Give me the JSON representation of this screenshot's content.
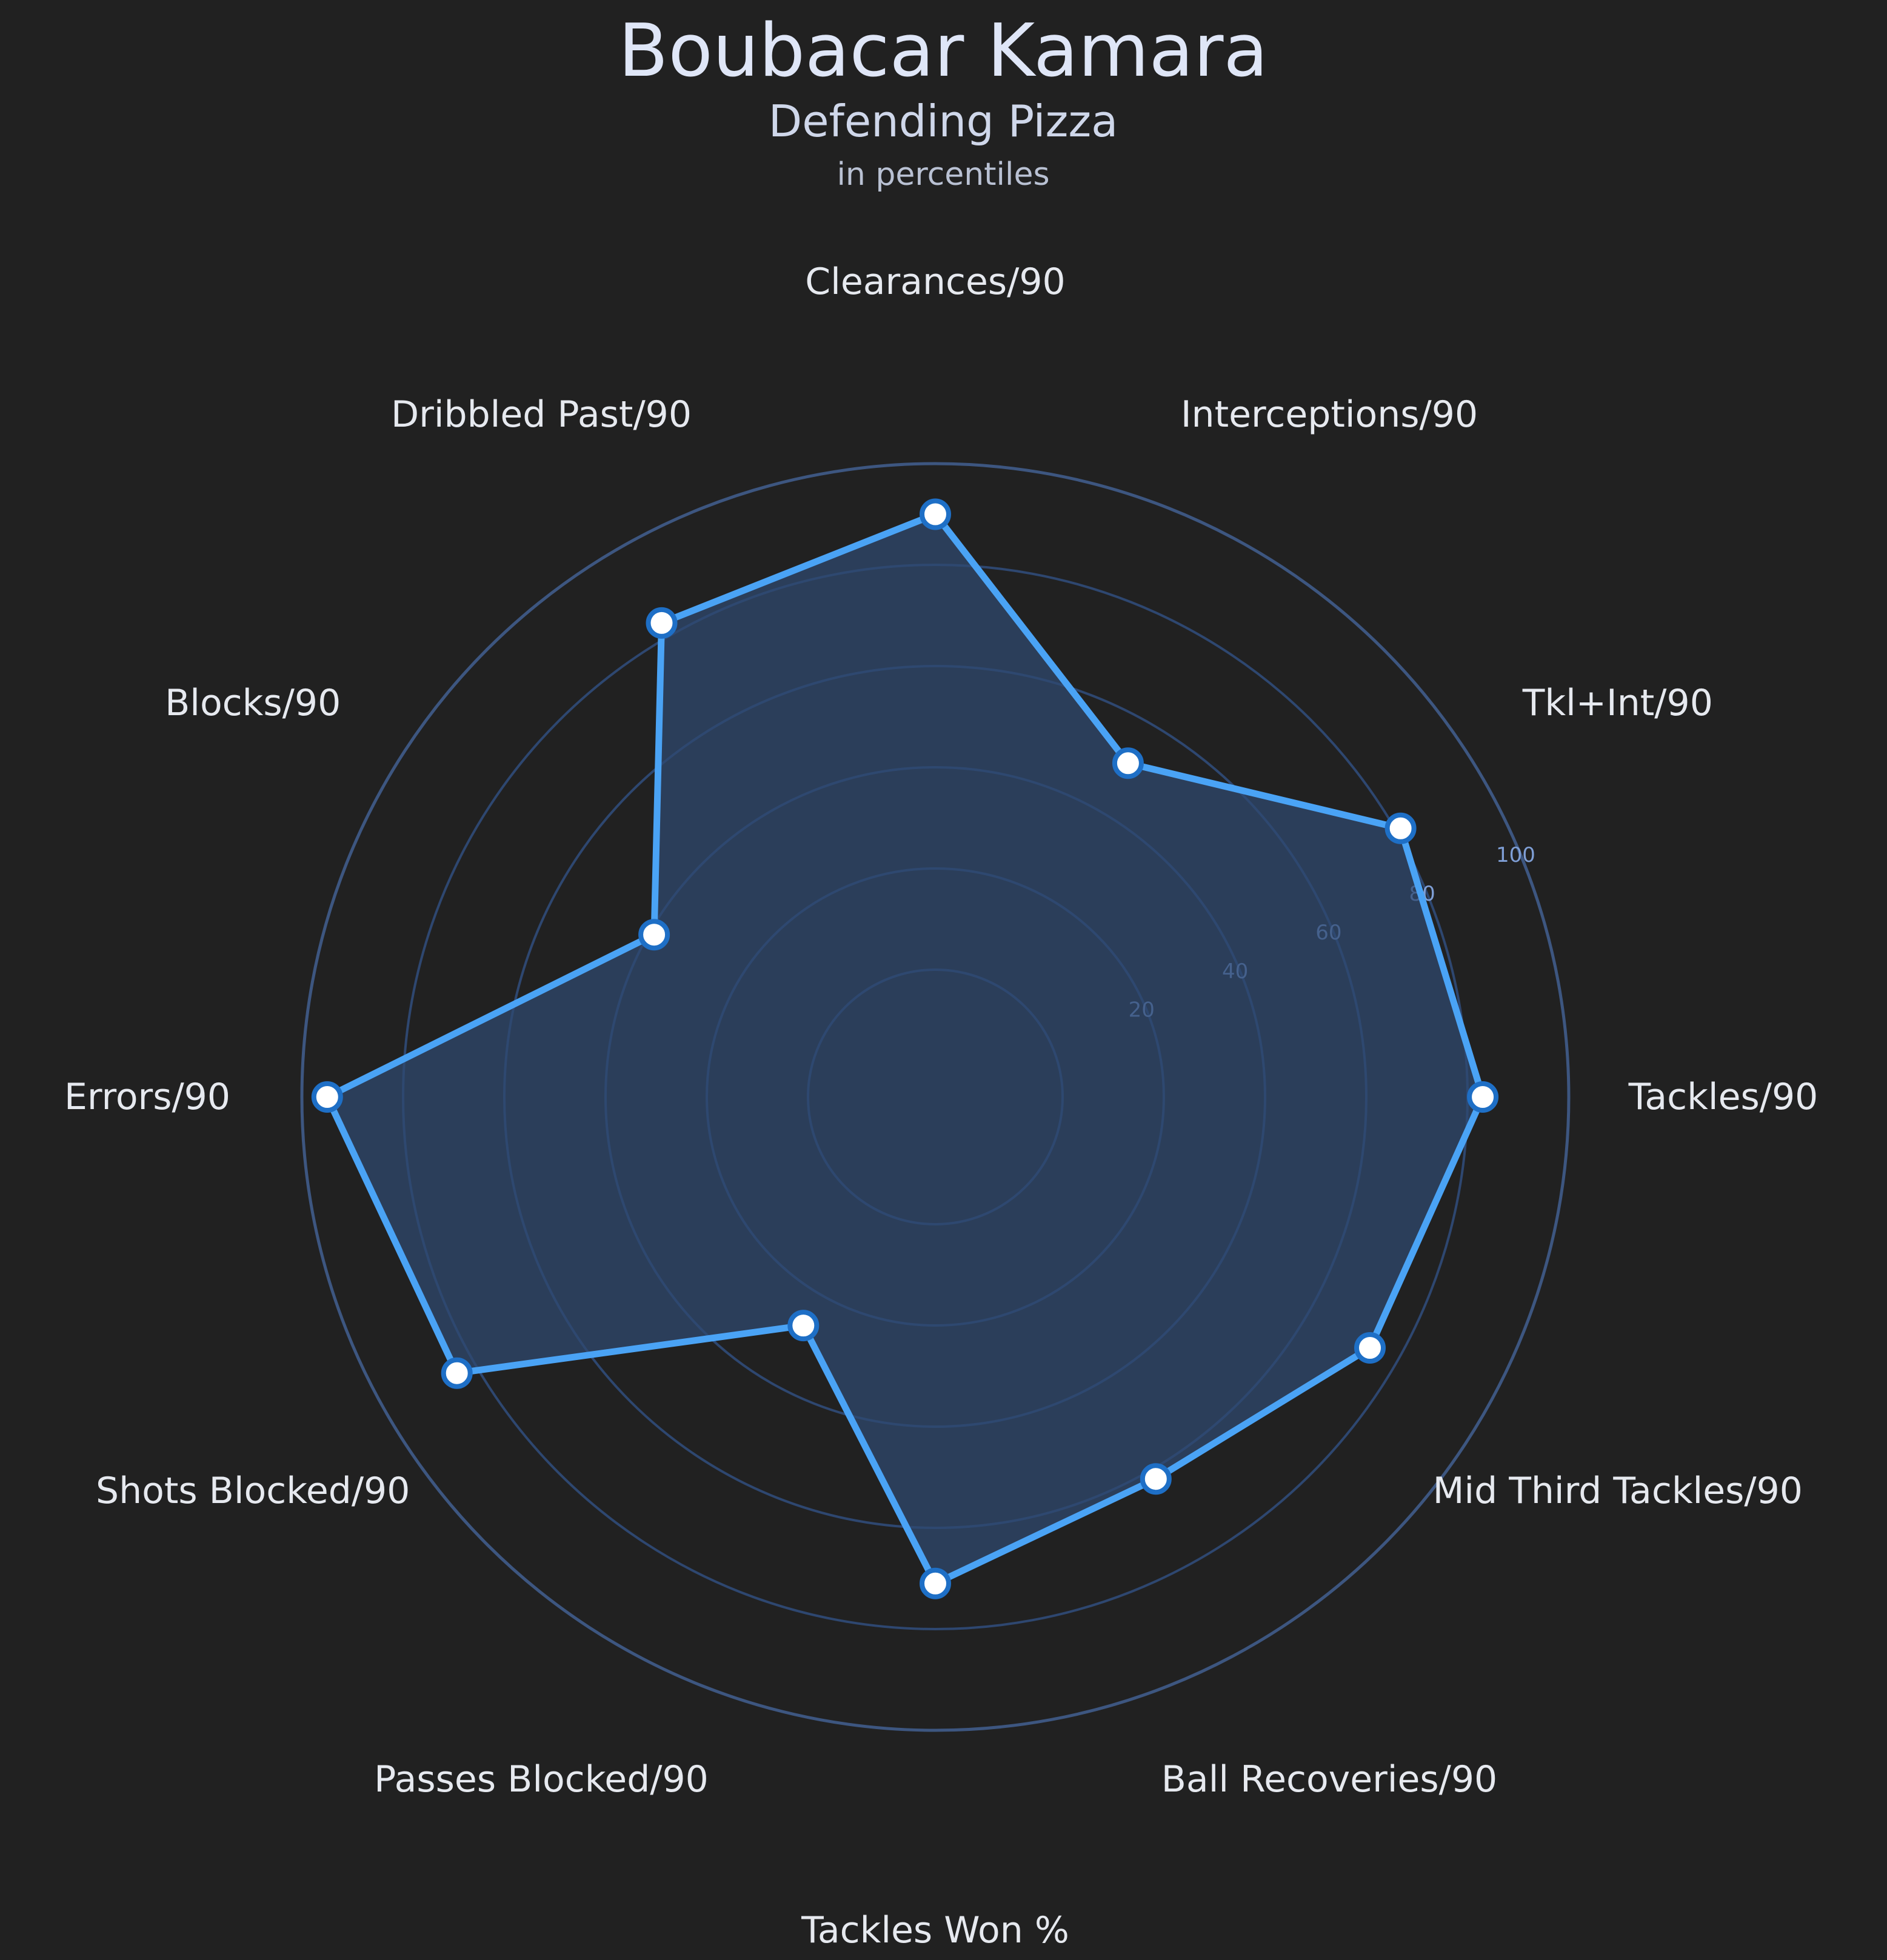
{
  "header": {
    "title": "Boubacar Kamara",
    "subtitle": "Defending Pizza",
    "note": "in percentiles"
  },
  "colors": {
    "background": "#212121",
    "series_line": "#4aa3f5",
    "series_fill": "#2f4a70",
    "grid": "#2e4770",
    "point_fill": "#ffffff",
    "point_stroke": "#1e6fc6"
  },
  "chart_data": {
    "type": "radar",
    "ylim": [
      0,
      100
    ],
    "radial_ticks": [
      20,
      40,
      60,
      80,
      100
    ],
    "categories": [
      "Tackles/90",
      "Tkl+Int/90",
      "Interceptions/90",
      "Clearances/90",
      "Dribbled Past/90",
      "Blocks/90",
      "Errors/90",
      "Shots Blocked/90",
      "Passes Blocked/90",
      "Tackles Won %",
      "Ball Recoveries/90",
      "Mid Third Tackles/90"
    ],
    "series": [
      {
        "values": [
          83,
          81,
          51,
          90,
          83,
          39,
          95,
          84,
          27,
          71,
          62,
          74
        ]
      }
    ]
  }
}
